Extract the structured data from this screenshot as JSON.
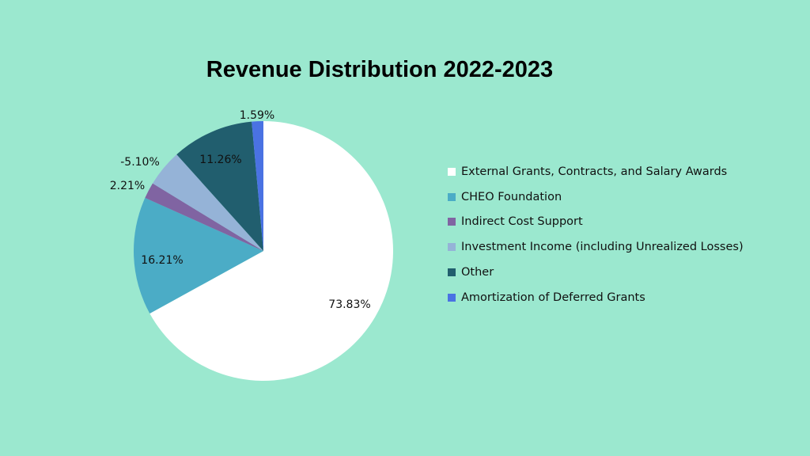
{
  "chart_data": {
    "type": "pie",
    "title": "Revenue Distribution 2022-2023",
    "slices": [
      {
        "name": "External Grants, Contracts, and Salary Awards",
        "value": 73.83,
        "label": "73.83%",
        "color": "#ffffff"
      },
      {
        "name": "CHEO Foundation",
        "value": 16.21,
        "label": "16.21%",
        "color": "#4bacc6"
      },
      {
        "name": "Indirect Cost Support",
        "value": 2.21,
        "label": "2.21%",
        "color": "#8064a2"
      },
      {
        "name": "Investment Income (including Unrealized Losses)",
        "value": -5.1,
        "label": "-5.10%",
        "color": "#95b3d7"
      },
      {
        "name": "Other",
        "value": 11.26,
        "label": "11.26%",
        "color": "#215e6e"
      },
      {
        "name": "Amortization of Deferred Grants",
        "value": 1.59,
        "label": "1.59%",
        "color": "#4a72e3"
      }
    ],
    "legend_position": "right",
    "start_angle": "12 o'clock",
    "direction": "clockwise"
  }
}
